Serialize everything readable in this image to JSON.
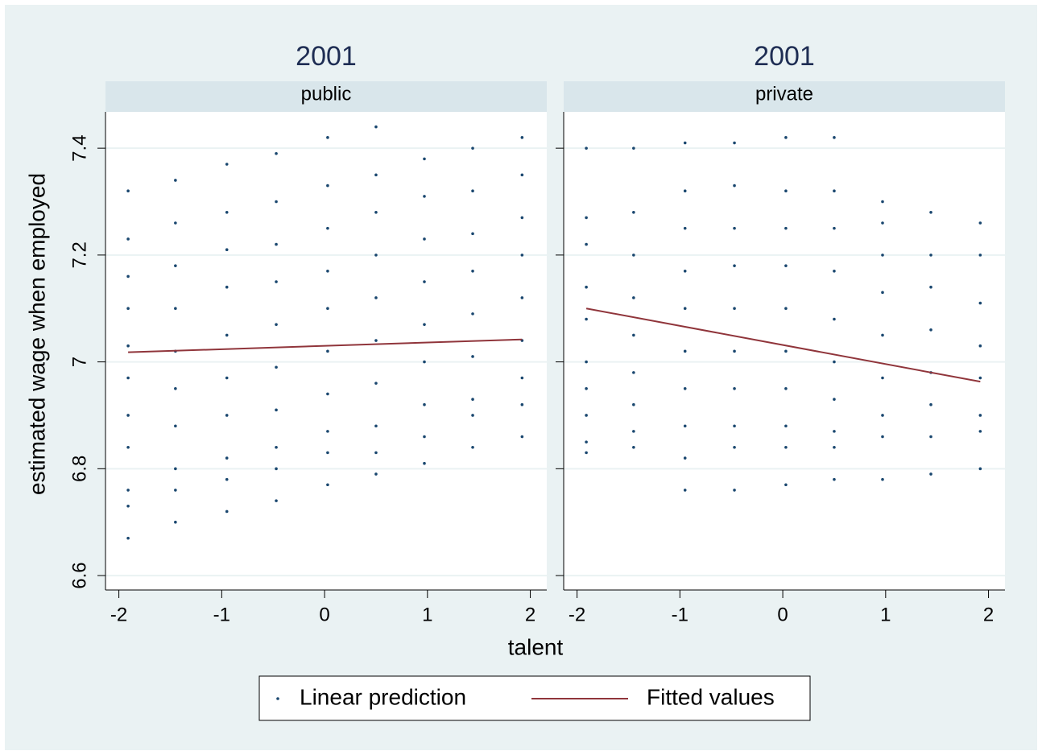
{
  "chart_data": {
    "type": "scatter",
    "ytitle": "estimated wage when employed",
    "xtitle": "talent",
    "xlim": [
      -2.13,
      2.16
    ],
    "ylim": [
      6.573,
      7.468
    ],
    "xticks": [
      -2,
      -1,
      0,
      1,
      2
    ],
    "yticks": [
      6.6,
      6.8,
      7,
      7.2,
      7.4
    ],
    "grid": true,
    "legend": "bottom",
    "panels": [
      {
        "title": "2001",
        "subtitle": "public",
        "series": [
          {
            "name": "Linear prediction",
            "type": "scatter",
            "color": "#1a476f",
            "x": [
              -1.91,
              -1.91,
              -1.91,
              -1.91,
              -1.91,
              -1.91,
              -1.91,
              -1.91,
              -1.91,
              -1.91,
              -1.91,
              -1.45,
              -1.45,
              -1.45,
              -1.45,
              -1.45,
              -1.45,
              -1.45,
              -1.45,
              -1.45,
              -1.45,
              -0.95,
              -0.95,
              -0.95,
              -0.95,
              -0.95,
              -0.95,
              -0.95,
              -0.95,
              -0.95,
              -0.95,
              -0.47,
              -0.47,
              -0.47,
              -0.47,
              -0.47,
              -0.47,
              -0.47,
              -0.47,
              -0.47,
              -0.47,
              0.03,
              0.03,
              0.03,
              0.03,
              0.03,
              0.03,
              0.03,
              0.03,
              0.03,
              0.03,
              0.5,
              0.5,
              0.5,
              0.5,
              0.5,
              0.5,
              0.5,
              0.5,
              0.5,
              0.5,
              0.97,
              0.97,
              0.97,
              0.97,
              0.97,
              0.97,
              0.97,
              0.97,
              0.97,
              1.44,
              1.44,
              1.44,
              1.44,
              1.44,
              1.44,
              1.44,
              1.44,
              1.44,
              1.92,
              1.92,
              1.92,
              1.92,
              1.92,
              1.92,
              1.92,
              1.92,
              1.92
            ],
            "values": [
              7.32,
              7.23,
              7.16,
              7.1,
              7.03,
              6.97,
              6.9,
              6.84,
              6.76,
              6.73,
              6.67,
              7.34,
              7.26,
              7.18,
              7.1,
              7.02,
              6.95,
              6.88,
              6.8,
              6.76,
              6.7,
              7.37,
              7.28,
              7.21,
              7.14,
              7.05,
              6.97,
              6.9,
              6.82,
              6.78,
              6.72,
              7.39,
              7.3,
              7.22,
              7.15,
              7.07,
              6.99,
              6.91,
              6.84,
              6.8,
              6.74,
              7.42,
              7.33,
              7.25,
              7.17,
              7.1,
              7.02,
              6.94,
              6.87,
              6.83,
              6.77,
              7.44,
              7.35,
              7.28,
              7.2,
              7.12,
              7.04,
              6.96,
              6.88,
              6.83,
              6.79,
              7.38,
              7.31,
              7.23,
              7.15,
              7.07,
              7,
              6.92,
              6.86,
              6.81,
              7.4,
              7.32,
              7.24,
              7.17,
              7.09,
              7.01,
              6.93,
              6.9,
              6.84,
              7.42,
              7.35,
              7.27,
              7.2,
              7.12,
              7.04,
              6.97,
              6.92,
              6.86
            ]
          },
          {
            "name": "Fitted values",
            "type": "line",
            "color": "#90353b",
            "x": [
              -1.91,
              1.92
            ],
            "values": [
              7.018,
              7.042
            ]
          }
        ]
      },
      {
        "title": "2001",
        "subtitle": "private",
        "series": [
          {
            "name": "Linear prediction",
            "type": "scatter",
            "color": "#1a476f",
            "x": [
              -1.91,
              -1.91,
              -1.91,
              -1.91,
              -1.91,
              -1.91,
              -1.91,
              -1.91,
              -1.91,
              -1.91,
              -1.45,
              -1.45,
              -1.45,
              -1.45,
              -1.45,
              -1.45,
              -1.45,
              -1.45,
              -1.45,
              -0.95,
              -0.95,
              -0.95,
              -0.95,
              -0.95,
              -0.95,
              -0.95,
              -0.95,
              -0.95,
              -0.95,
              -0.47,
              -0.47,
              -0.47,
              -0.47,
              -0.47,
              -0.47,
              -0.47,
              -0.47,
              -0.47,
              -0.47,
              0.03,
              0.03,
              0.03,
              0.03,
              0.03,
              0.03,
              0.03,
              0.03,
              0.03,
              0.03,
              0.5,
              0.5,
              0.5,
              0.5,
              0.5,
              0.5,
              0.5,
              0.5,
              0.5,
              0.5,
              0.97,
              0.97,
              0.97,
              0.97,
              0.97,
              0.97,
              0.97,
              0.97,
              0.97,
              1.44,
              1.44,
              1.44,
              1.44,
              1.44,
              1.44,
              1.44,
              1.44,
              1.92,
              1.92,
              1.92,
              1.92,
              1.92,
              1.92,
              1.92,
              1.92
            ],
            "values": [
              7.4,
              7.27,
              7.22,
              7.14,
              7.08,
              7,
              6.95,
              6.9,
              6.85,
              6.83,
              7.4,
              7.28,
              7.2,
              7.12,
              7.05,
              6.98,
              6.92,
              6.87,
              6.84,
              7.41,
              7.32,
              7.25,
              7.17,
              7.1,
              7.02,
              6.95,
              6.88,
              6.82,
              6.76,
              7.41,
              7.33,
              7.25,
              7.18,
              7.1,
              7.02,
              6.95,
              6.88,
              6.84,
              6.76,
              7.42,
              7.32,
              7.25,
              7.18,
              7.1,
              7.02,
              6.95,
              6.88,
              6.84,
              6.77,
              7.42,
              7.32,
              7.25,
              7.17,
              7.08,
              7,
              6.93,
              6.87,
              6.84,
              6.78,
              7.3,
              7.26,
              7.2,
              7.13,
              7.05,
              6.97,
              6.9,
              6.86,
              6.78,
              7.28,
              7.2,
              7.14,
              7.06,
              6.98,
              6.92,
              6.86,
              6.79,
              7.26,
              7.2,
              7.11,
              7.03,
              6.97,
              6.9,
              6.87,
              6.8
            ]
          },
          {
            "name": "Fitted values",
            "type": "line",
            "color": "#90353b",
            "x": [
              -1.91,
              1.92
            ],
            "values": [
              7.1,
              6.963
            ]
          }
        ]
      }
    ]
  }
}
